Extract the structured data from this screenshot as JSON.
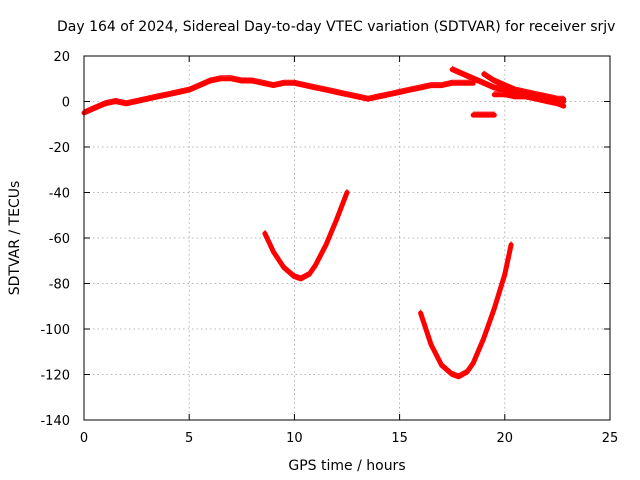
{
  "chart_data": {
    "type": "line",
    "title": "Day 164 of 2024, Sidereal Day-to-day VTEC variation (SDTVAR) for receiver srjv",
    "xlabel": "GPS time / hours",
    "ylabel": "SDTVAR / TECUs",
    "xlim": [
      0,
      25
    ],
    "ylim": [
      -140,
      20
    ],
    "xticks": [
      0,
      5,
      10,
      15,
      20,
      25
    ],
    "yticks": [
      -140,
      -120,
      -100,
      -80,
      -60,
      -40,
      -20,
      0,
      20
    ],
    "grid": true,
    "legend": "none",
    "color": "#ff0000",
    "series": [
      {
        "x": [
          0,
          0.5,
          1,
          1.5,
          2,
          2.5,
          3,
          3.5,
          4,
          4.5,
          5,
          5.5,
          6,
          6.5,
          7,
          7.5,
          8,
          8.5,
          9,
          9.5,
          10,
          10.5,
          11,
          11.5,
          12,
          12.5,
          13,
          13.5,
          14,
          14.5,
          15,
          15.5,
          16,
          16.5,
          17,
          17.5,
          18,
          18.5
        ],
        "y": [
          -5,
          -3,
          -1,
          0,
          -1,
          0,
          1,
          2,
          3,
          4,
          5,
          7,
          9,
          10,
          10,
          9,
          9,
          8,
          7,
          8,
          8,
          7,
          6,
          5,
          4,
          3,
          2,
          1,
          2,
          3,
          4,
          5,
          6,
          7,
          7,
          8,
          8,
          8
        ]
      },
      {
        "x": [
          17.5,
          18,
          18.5,
          19,
          19.5,
          20,
          20.5,
          21,
          21.5,
          22,
          22.5,
          22.8
        ],
        "y": [
          14,
          12,
          10,
          8,
          6,
          5,
          4,
          3,
          2,
          1,
          0,
          0
        ]
      },
      {
        "x": [
          19,
          19.5,
          20,
          20.5,
          21,
          21.5,
          22,
          22.5,
          22.8
        ],
        "y": [
          12,
          9,
          7,
          5,
          4,
          3,
          2,
          1,
          1
        ]
      },
      {
        "x": [
          19.5,
          20,
          20.5,
          21,
          21.5,
          22,
          22.5,
          22.8
        ],
        "y": [
          3,
          3,
          2,
          2,
          1,
          0,
          -1,
          -2
        ]
      },
      {
        "x": [
          18.5,
          19,
          19.5
        ],
        "y": [
          -6,
          -6,
          -6
        ]
      },
      {
        "x": [
          8.6,
          9,
          9.5,
          10,
          10.3,
          10.7,
          11,
          11.5,
          12,
          12.5
        ],
        "y": [
          -58,
          -66,
          -73,
          -77,
          -78,
          -76,
          -72,
          -63,
          -52,
          -40
        ]
      },
      {
        "x": [
          16,
          16.5,
          17,
          17.5,
          17.8,
          18.2,
          18.5,
          19,
          19.5,
          20,
          20.3
        ],
        "y": [
          -93,
          -107,
          -116,
          -120,
          -121,
          -119,
          -115,
          -104,
          -91,
          -76,
          -63
        ]
      }
    ]
  }
}
